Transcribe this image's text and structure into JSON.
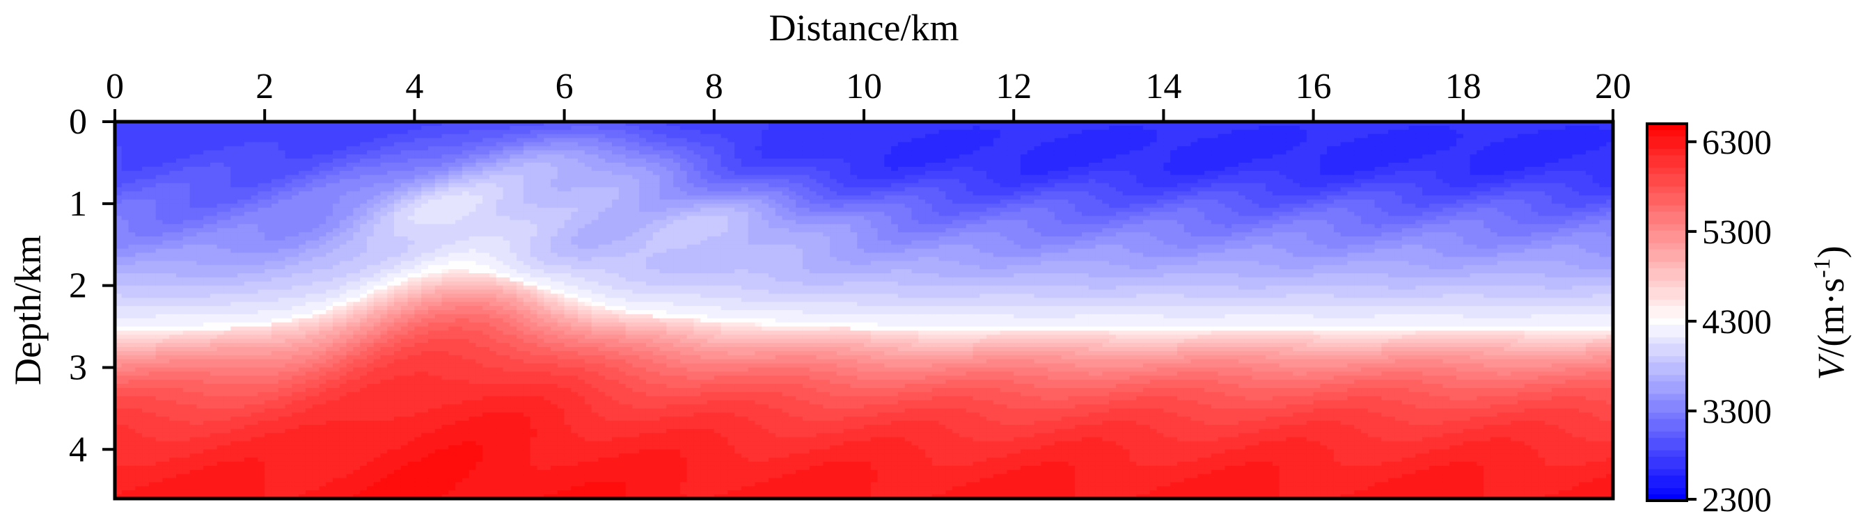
{
  "chart_data": {
    "type": "heatmap",
    "title": "",
    "xlabel": "Distance/km",
    "ylabel": "Depth/km",
    "xlim": [
      0,
      20
    ],
    "ylim": [
      0,
      4.6
    ],
    "x_ticks": [
      "0",
      "2",
      "4",
      "6",
      "8",
      "10",
      "12",
      "14",
      "16",
      "18",
      "20"
    ],
    "y_ticks": [
      "0",
      "1",
      "2",
      "3",
      "4"
    ],
    "x_axis_position": "top",
    "y_axis_inverted": true,
    "grid": false,
    "colorbar": {
      "label_italic": "V",
      "label_rest": "/(m·s",
      "label_sup": "-1",
      "label_close": ")",
      "range": [
        2300,
        6500
      ],
      "ticks": [
        "6300",
        "5300",
        "4300",
        "3300",
        "2300"
      ],
      "colors": {
        "low": "#0000ff",
        "mid": "#ffffff",
        "high": "#ff0000"
      },
      "mid_value": 4300
    },
    "field_model": {
      "description_units": "velocity m/s as function of distance (km) and depth (km)",
      "surface_velocity_m_s": 2800,
      "interface_depth_km_base": 2.55,
      "high_velocity_dome": {
        "center_distance_km": 4.5,
        "apex_depth_km": 1.9,
        "width_km": 1.6
      },
      "shallow_bright_lenses": [
        {
          "center_distance_km": 6.2,
          "center_depth_km": 0.5,
          "strength_m_s": 700
        },
        {
          "center_distance_km": 4.5,
          "center_depth_km": 1.0,
          "strength_m_s": 600
        },
        {
          "center_distance_km": 8.0,
          "center_depth_km": 1.2,
          "strength_m_s": 500
        }
      ],
      "deep_velocity_m_s": 6400
    }
  }
}
